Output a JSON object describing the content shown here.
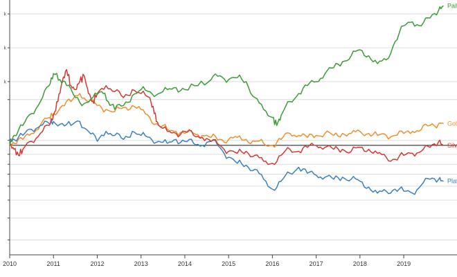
{
  "chart_data": {
    "type": "line",
    "title": "",
    "xlabel": "",
    "ylabel": "",
    "x_ticks": [
      "2010",
      "2011",
      "2012",
      "2013",
      "2014",
      "2015",
      "2016",
      "2017",
      "2018",
      "2019"
    ],
    "xlim": [
      2010.0,
      2019.9
    ],
    "ylim": [
      -0.55,
      0.73
    ],
    "baseline": 0,
    "y_gridlines": [
      0.66,
      0.49,
      0.32,
      0.23,
      0.025,
      -0.045,
      -0.095,
      -0.145,
      -0.205,
      -0.275,
      -0.365,
      -0.475
    ],
    "y_tick_labels": [
      "k",
      "k",
      "k",
      "",
      "",
      "",
      "",
      "",
      "",
      "",
      "",
      ""
    ],
    "grid": true,
    "legend": "inline labels at right end of lines",
    "series": [
      {
        "name": "Pall",
        "color": "#3a9c35",
        "points": [
          [
            2010.0,
            0.0
          ],
          [
            2010.1,
            0.05
          ],
          [
            2010.3,
            0.1
          ],
          [
            2010.5,
            0.16
          ],
          [
            2010.7,
            0.22
          ],
          [
            2010.9,
            0.3
          ],
          [
            2011.0,
            0.36
          ],
          [
            2011.15,
            0.33
          ],
          [
            2011.3,
            0.3
          ],
          [
            2011.5,
            0.24
          ],
          [
            2011.7,
            0.21
          ],
          [
            2011.9,
            0.24
          ],
          [
            2012.1,
            0.27
          ],
          [
            2012.25,
            0.22
          ],
          [
            2012.4,
            0.18
          ],
          [
            2012.6,
            0.2
          ],
          [
            2012.8,
            0.25
          ],
          [
            2013.0,
            0.28
          ],
          [
            2013.2,
            0.27
          ],
          [
            2013.4,
            0.26
          ],
          [
            2013.6,
            0.28
          ],
          [
            2013.8,
            0.29
          ],
          [
            2014.0,
            0.28
          ],
          [
            2014.3,
            0.3
          ],
          [
            2014.6,
            0.33
          ],
          [
            2014.8,
            0.35
          ],
          [
            2015.0,
            0.33
          ],
          [
            2015.2,
            0.34
          ],
          [
            2015.4,
            0.32
          ],
          [
            2015.6,
            0.24
          ],
          [
            2015.8,
            0.18
          ],
          [
            2016.0,
            0.14
          ],
          [
            2016.1,
            0.1
          ],
          [
            2016.2,
            0.15
          ],
          [
            2016.4,
            0.22
          ],
          [
            2016.6,
            0.26
          ],
          [
            2016.8,
            0.3
          ],
          [
            2017.0,
            0.32
          ],
          [
            2017.2,
            0.36
          ],
          [
            2017.4,
            0.39
          ],
          [
            2017.6,
            0.42
          ],
          [
            2017.8,
            0.45
          ],
          [
            2018.0,
            0.48
          ],
          [
            2018.2,
            0.45
          ],
          [
            2018.4,
            0.41
          ],
          [
            2018.6,
            0.43
          ],
          [
            2018.8,
            0.52
          ],
          [
            2019.0,
            0.6
          ],
          [
            2019.2,
            0.62
          ],
          [
            2019.4,
            0.6
          ],
          [
            2019.6,
            0.64
          ],
          [
            2019.8,
            0.68
          ],
          [
            2019.9,
            0.7
          ]
        ]
      },
      {
        "name": "Gol",
        "color": "#ef8f2b",
        "points": [
          [
            2010.0,
            0.0
          ],
          [
            2010.1,
            0.01
          ],
          [
            2010.3,
            0.03
          ],
          [
            2010.5,
            0.06
          ],
          [
            2010.7,
            0.1
          ],
          [
            2010.9,
            0.14
          ],
          [
            2011.0,
            0.16
          ],
          [
            2011.2,
            0.2
          ],
          [
            2011.4,
            0.22
          ],
          [
            2011.6,
            0.26
          ],
          [
            2011.8,
            0.22
          ],
          [
            2012.0,
            0.2
          ],
          [
            2012.2,
            0.18
          ],
          [
            2012.4,
            0.17
          ],
          [
            2012.6,
            0.19
          ],
          [
            2012.8,
            0.2
          ],
          [
            2013.0,
            0.18
          ],
          [
            2013.2,
            0.14
          ],
          [
            2013.4,
            0.1
          ],
          [
            2013.6,
            0.08
          ],
          [
            2013.8,
            0.07
          ],
          [
            2014.0,
            0.06
          ],
          [
            2014.2,
            0.06
          ],
          [
            2014.4,
            0.05
          ],
          [
            2014.6,
            0.04
          ],
          [
            2014.8,
            0.03
          ],
          [
            2015.0,
            0.03
          ],
          [
            2015.2,
            0.04
          ],
          [
            2015.4,
            0.03
          ],
          [
            2015.6,
            0.02
          ],
          [
            2015.8,
            0.01
          ],
          [
            2016.0,
            0.0
          ],
          [
            2016.2,
            0.03
          ],
          [
            2016.4,
            0.06
          ],
          [
            2016.6,
            0.05
          ],
          [
            2016.8,
            0.04
          ],
          [
            2017.0,
            0.05
          ],
          [
            2017.2,
            0.06
          ],
          [
            2017.4,
            0.05
          ],
          [
            2017.6,
            0.06
          ],
          [
            2017.8,
            0.06
          ],
          [
            2018.0,
            0.07
          ],
          [
            2018.2,
            0.06
          ],
          [
            2018.4,
            0.05
          ],
          [
            2018.6,
            0.05
          ],
          [
            2018.8,
            0.05
          ],
          [
            2019.0,
            0.06
          ],
          [
            2019.2,
            0.07
          ],
          [
            2019.4,
            0.08
          ],
          [
            2019.6,
            0.1
          ],
          [
            2019.8,
            0.11
          ],
          [
            2019.9,
            0.11
          ]
        ]
      },
      {
        "name": "Silv",
        "color": "#d03a33",
        "points": [
          [
            2010.0,
            0.0
          ],
          [
            2010.1,
            -0.02
          ],
          [
            2010.2,
            -0.05
          ],
          [
            2010.3,
            -0.02
          ],
          [
            2010.5,
            0.02
          ],
          [
            2010.7,
            0.06
          ],
          [
            2010.9,
            0.1
          ],
          [
            2011.0,
            0.15
          ],
          [
            2011.1,
            0.22
          ],
          [
            2011.2,
            0.32
          ],
          [
            2011.3,
            0.38
          ],
          [
            2011.4,
            0.3
          ],
          [
            2011.5,
            0.28
          ],
          [
            2011.6,
            0.32
          ],
          [
            2011.7,
            0.35
          ],
          [
            2011.8,
            0.26
          ],
          [
            2011.9,
            0.22
          ],
          [
            2012.0,
            0.26
          ],
          [
            2012.2,
            0.3
          ],
          [
            2012.4,
            0.27
          ],
          [
            2012.6,
            0.24
          ],
          [
            2012.8,
            0.28
          ],
          [
            2013.0,
            0.26
          ],
          [
            2013.2,
            0.24
          ],
          [
            2013.3,
            0.16
          ],
          [
            2013.4,
            0.1
          ],
          [
            2013.6,
            0.07
          ],
          [
            2013.8,
            0.06
          ],
          [
            2014.0,
            0.07
          ],
          [
            2014.2,
            0.05
          ],
          [
            2014.4,
            0.04
          ],
          [
            2014.6,
            0.02
          ],
          [
            2014.8,
            0.0
          ],
          [
            2015.0,
            -0.03
          ],
          [
            2015.2,
            -0.04
          ],
          [
            2015.4,
            -0.03
          ],
          [
            2015.6,
            -0.05
          ],
          [
            2015.8,
            -0.08
          ],
          [
            2016.0,
            -0.09
          ],
          [
            2016.2,
            -0.05
          ],
          [
            2016.4,
            -0.02
          ],
          [
            2016.6,
            -0.03
          ],
          [
            2016.8,
            -0.01
          ],
          [
            2017.0,
            0.0
          ],
          [
            2017.2,
            -0.01
          ],
          [
            2017.4,
            -0.02
          ],
          [
            2017.6,
            -0.02
          ],
          [
            2017.8,
            -0.03
          ],
          [
            2018.0,
            -0.01
          ],
          [
            2018.2,
            -0.02
          ],
          [
            2018.4,
            -0.04
          ],
          [
            2018.6,
            -0.06
          ],
          [
            2018.8,
            -0.07
          ],
          [
            2019.0,
            -0.05
          ],
          [
            2019.2,
            -0.04
          ],
          [
            2019.4,
            -0.03
          ],
          [
            2019.6,
            -0.01
          ],
          [
            2019.8,
            0.02
          ],
          [
            2019.9,
            0.0
          ]
        ]
      },
      {
        "name": "Plat",
        "color": "#3b7fbd",
        "points": [
          [
            2010.0,
            0.02
          ],
          [
            2010.1,
            0.03
          ],
          [
            2010.3,
            0.05
          ],
          [
            2010.5,
            0.08
          ],
          [
            2010.7,
            0.1
          ],
          [
            2010.9,
            0.11
          ],
          [
            2011.0,
            0.12
          ],
          [
            2011.2,
            0.11
          ],
          [
            2011.4,
            0.1
          ],
          [
            2011.6,
            0.12
          ],
          [
            2011.8,
            0.07
          ],
          [
            2012.0,
            0.02
          ],
          [
            2012.2,
            0.07
          ],
          [
            2012.4,
            0.05
          ],
          [
            2012.6,
            0.03
          ],
          [
            2012.8,
            0.07
          ],
          [
            2013.0,
            0.05
          ],
          [
            2013.2,
            0.04
          ],
          [
            2013.4,
            0.02
          ],
          [
            2013.6,
            0.01
          ],
          [
            2013.8,
            0.03
          ],
          [
            2014.0,
            0.02
          ],
          [
            2014.2,
            0.01
          ],
          [
            2014.4,
            0.0
          ],
          [
            2014.6,
            0.02
          ],
          [
            2014.8,
            -0.01
          ],
          [
            2015.0,
            -0.06
          ],
          [
            2015.2,
            -0.09
          ],
          [
            2015.4,
            -0.1
          ],
          [
            2015.6,
            -0.12
          ],
          [
            2015.8,
            -0.17
          ],
          [
            2016.0,
            -0.22
          ],
          [
            2016.2,
            -0.18
          ],
          [
            2016.4,
            -0.14
          ],
          [
            2016.6,
            -0.11
          ],
          [
            2016.8,
            -0.14
          ],
          [
            2017.0,
            -0.15
          ],
          [
            2017.2,
            -0.16
          ],
          [
            2017.4,
            -0.17
          ],
          [
            2017.6,
            -0.16
          ],
          [
            2017.8,
            -0.17
          ],
          [
            2018.0,
            -0.18
          ],
          [
            2018.2,
            -0.21
          ],
          [
            2018.4,
            -0.24
          ],
          [
            2018.6,
            -0.23
          ],
          [
            2018.8,
            -0.22
          ],
          [
            2019.0,
            -0.23
          ],
          [
            2019.2,
            -0.24
          ],
          [
            2019.4,
            -0.2
          ],
          [
            2019.6,
            -0.17
          ],
          [
            2019.8,
            -0.17
          ],
          [
            2019.9,
            -0.18
          ]
        ]
      }
    ]
  }
}
